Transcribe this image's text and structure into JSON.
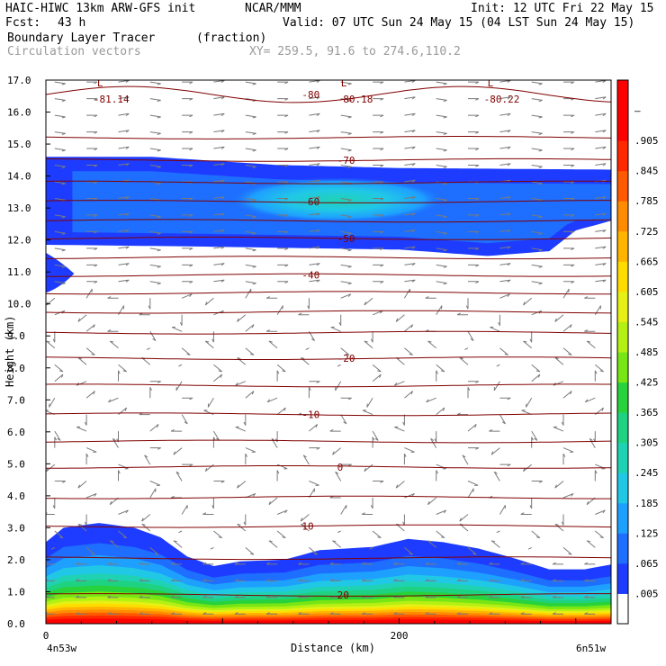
{
  "header": {
    "model": "HAIC-HIWC 13km ARW-GFS init",
    "org": "NCAR/MMM",
    "init": "Init: 12 UTC Fri 22 May 15",
    "fcst_label": "Fcst:",
    "fcst_value": "43 h",
    "valid": "Valid: 07 UTC Sun 24 May 15 (04 LST Sun 24 May 15)",
    "field": "Boundary Layer Tracer",
    "units": "(fraction)",
    "vectors": "Circulation vectors",
    "xy": "XY= 259.5, 91.6 to 274.6,110.2"
  },
  "chart_data": {
    "type": "heatmap",
    "title": "Boundary Layer Tracer",
    "units": "(fraction)",
    "xlabel": "Distance (km)",
    "ylabel": "Height (km)",
    "xlim": [
      0,
      320
    ],
    "ylim": [
      0,
      17
    ],
    "x_ticks": [
      {
        "value": 0,
        "label": "0"
      },
      {
        "value": 200,
        "label": "200"
      }
    ],
    "x_end_labels": {
      "left": "4n53w",
      "right": "6n51w"
    },
    "y_ticks": [
      "0.0",
      "1.0",
      "2.0",
      "3.0",
      "4.0",
      "5.0",
      "6.0",
      "7.0",
      "8.0",
      "9.0",
      "10.0",
      "11.0",
      "12.0",
      "13.0",
      "14.0",
      "15.0",
      "16.0",
      "17.0"
    ],
    "colorbar": {
      "labels": [
        ".005",
        ".065",
        ".125",
        ".185",
        ".245",
        ".305",
        ".365",
        ".425",
        ".485",
        ".545",
        ".605",
        ".665",
        ".725",
        ".785",
        ".845",
        ".905",
        "–"
      ],
      "colors": [
        "#ffffff",
        "#1e3cff",
        "#1e6eff",
        "#1ea0ff",
        "#20c8e6",
        "#20d2b4",
        "#1ed282",
        "#28d23c",
        "#78e614",
        "#b4f014",
        "#e6f014",
        "#ffdc00",
        "#ffb400",
        "#ff8c00",
        "#ff5a00",
        "#ff2800",
        "#ff0000",
        "#ff0000"
      ]
    },
    "contours": [
      {
        "label": "-80",
        "km": 16.55
      },
      {
        "label": "-70",
        "km": 14.5
      },
      {
        "label": "-60",
        "km": 13.2
      },
      {
        "label": "-50",
        "km": 12.05
      },
      {
        "label": "-40",
        "km": 10.9
      },
      {
        "label": "-20",
        "km": 8.3
      },
      {
        "label": "-10",
        "km": 6.55
      },
      {
        "label": "0",
        "km": 4.9
      },
      {
        "label": "10",
        "km": 3.05
      },
      {
        "label": "20",
        "km": 0.9
      }
    ],
    "contour_levels_km": [
      16.55,
      15.2,
      14.5,
      13.8,
      13.2,
      12.6,
      12.05,
      11.45,
      10.9,
      10.35,
      9.75,
      9.1,
      8.3,
      7.45,
      6.55,
      5.7,
      4.9,
      3.95,
      3.05,
      2.05,
      0.9
    ],
    "min_labels": [
      {
        "letter": "L",
        "label": "-81.14",
        "x_km": 30,
        "y_km": 16.6
      },
      {
        "letter": "L",
        "label": "-80.18",
        "x_km": 168,
        "y_km": 16.6
      },
      {
        "letter": "L",
        "label": "-80.22",
        "x_km": 251,
        "y_km": 16.6
      }
    ],
    "bl_top_km": [
      {
        "x": 0,
        "y": 2.55
      },
      {
        "x": 10,
        "y": 3.0
      },
      {
        "x": 30,
        "y": 3.15
      },
      {
        "x": 50,
        "y": 3.0
      },
      {
        "x": 65,
        "y": 2.7
      },
      {
        "x": 80,
        "y": 2.1
      },
      {
        "x": 95,
        "y": 1.8
      },
      {
        "x": 110,
        "y": 1.95
      },
      {
        "x": 135,
        "y": 2.0
      },
      {
        "x": 155,
        "y": 2.3
      },
      {
        "x": 185,
        "y": 2.4
      },
      {
        "x": 205,
        "y": 2.65
      },
      {
        "x": 225,
        "y": 2.55
      },
      {
        "x": 245,
        "y": 2.35
      },
      {
        "x": 265,
        "y": 2.05
      },
      {
        "x": 285,
        "y": 1.7
      },
      {
        "x": 305,
        "y": 1.7
      },
      {
        "x": 320,
        "y": 1.85
      }
    ],
    "upper_layer": {
      "top_km": [
        {
          "x": 0,
          "y": 14.6
        },
        {
          "x": 60,
          "y": 14.6
        },
        {
          "x": 130,
          "y": 14.35
        },
        {
          "x": 200,
          "y": 14.25
        },
        {
          "x": 320,
          "y": 14.2
        }
      ],
      "bottom_km": [
        {
          "x": 0,
          "y": 11.85
        },
        {
          "x": 80,
          "y": 11.8
        },
        {
          "x": 140,
          "y": 11.75
        },
        {
          "x": 200,
          "y": 11.7
        },
        {
          "x": 250,
          "y": 11.5
        },
        {
          "x": 285,
          "y": 11.65
        },
        {
          "x": 300,
          "y": 12.3
        },
        {
          "x": 320,
          "y": 12.6
        }
      ],
      "core_value": 0.185
    }
  }
}
